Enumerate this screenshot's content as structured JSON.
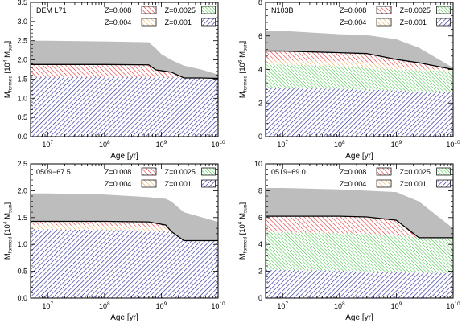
{
  "chart_data": [
    {
      "type": "area",
      "title": "DEM L71",
      "xlabel": "Age [yr]",
      "ylabel_main": "M",
      "ylabel_sub": "formed",
      "ylabel_bracket": "[10",
      "ylabel_exp": "4",
      "ylabel_unit": "M",
      "ylabel_unit_sub": "sun",
      "ylabel_close": "]",
      "xscale": "log",
      "xlim": [
        5000000.0,
        10000000000.0
      ],
      "ylim": [
        0,
        3.5
      ],
      "xticks": [
        10000000.0,
        100000000.0,
        1000000000.0,
        10000000000.0
      ],
      "xtick_labels": [
        {
          "b": "10",
          "e": "7"
        },
        {
          "b": "10",
          "e": "8"
        },
        {
          "b": "10",
          "e": "9"
        },
        {
          "b": "10",
          "e": "10"
        }
      ],
      "yticks": [
        0,
        0.5,
        1.0,
        1.5,
        2.0,
        2.5,
        3.0,
        3.5
      ],
      "ytick_labels": [
        "0.0",
        "0.5",
        "1.0",
        "1.5",
        "2.0",
        "2.5",
        "3.0",
        "3.5"
      ],
      "legend": [
        {
          "label": "Z=0.008",
          "pattern": "red"
        },
        {
          "label": "Z=0.0025",
          "pattern": "green"
        },
        {
          "label": "Z=0.004",
          "pattern": "orange"
        },
        {
          "label": "Z=0.001",
          "pattern": "blue"
        }
      ],
      "x": [
        5000000.0,
        10000000.0,
        100000000.0,
        600000000.0,
        800000000.0,
        1000000000.0,
        1500000000.0,
        2500000000.0,
        5000000000.0,
        10000000000.0
      ],
      "layers": [
        {
          "pattern": "blue",
          "y": [
            1.55,
            1.55,
            1.55,
            1.55,
            1.55,
            1.55,
            1.54,
            1.53,
            1.53,
            1.52
          ]
        },
        {
          "pattern": "green",
          "y": [
            1.55,
            1.55,
            1.55,
            1.55,
            1.55,
            1.55,
            1.54,
            1.53,
            1.53,
            1.52
          ]
        },
        {
          "pattern": "orange",
          "y": [
            1.55,
            1.55,
            1.55,
            1.55,
            1.55,
            1.55,
            1.54,
            1.53,
            1.53,
            1.52
          ]
        },
        {
          "pattern": "red",
          "y": [
            1.88,
            1.88,
            1.88,
            1.87,
            1.74,
            1.72,
            1.68,
            1.53,
            1.53,
            1.52
          ]
        }
      ],
      "upper": [
        2.5,
        2.5,
        2.48,
        2.46,
        2.3,
        2.15,
        2.0,
        1.85,
        1.75,
        1.62
      ]
    },
    {
      "type": "area",
      "title": "N103B",
      "xlabel": "Age [yr]",
      "ylabel_main": "M",
      "ylabel_sub": "formed",
      "ylabel_bracket": "[10",
      "ylabel_exp": "6",
      "ylabel_unit": "M",
      "ylabel_unit_sub": "sun",
      "ylabel_close": "]",
      "xscale": "log",
      "xlim": [
        5000000.0,
        10000000000.0
      ],
      "ylim": [
        0,
        8
      ],
      "xticks": [
        10000000.0,
        100000000.0,
        1000000000.0,
        10000000000.0
      ],
      "xtick_labels": [
        {
          "b": "10",
          "e": "7"
        },
        {
          "b": "10",
          "e": "8"
        },
        {
          "b": "10",
          "e": "9"
        },
        {
          "b": "10",
          "e": "10"
        }
      ],
      "yticks": [
        0,
        2,
        4,
        6,
        8
      ],
      "ytick_labels": [
        "0",
        "2",
        "4",
        "6",
        "8"
      ],
      "legend": [
        {
          "label": "Z=0.008",
          "pattern": "red"
        },
        {
          "label": "Z=0.0025",
          "pattern": "green"
        },
        {
          "label": "Z=0.004",
          "pattern": "orange"
        },
        {
          "label": "Z=0.001",
          "pattern": "blue"
        }
      ],
      "x": [
        5000000.0,
        10000000.0,
        100000000.0,
        300000000.0,
        1000000000.0,
        2500000000.0,
        10000000000.0
      ],
      "layers": [
        {
          "pattern": "blue",
          "y": [
            2.9,
            2.9,
            2.85,
            2.8,
            2.75,
            2.7,
            2.65
          ]
        },
        {
          "pattern": "green",
          "y": [
            4.3,
            4.3,
            4.2,
            4.1,
            4.0,
            3.95,
            3.9
          ]
        },
        {
          "pattern": "orange",
          "y": [
            4.55,
            4.55,
            4.5,
            4.45,
            4.2,
            4.05,
            4.0
          ]
        },
        {
          "pattern": "red",
          "y": [
            5.1,
            5.1,
            5.0,
            4.95,
            4.6,
            4.4,
            4.0
          ]
        }
      ],
      "upper": [
        6.3,
        6.3,
        6.1,
        6.05,
        5.8,
        5.3,
        4.1
      ]
    },
    {
      "type": "area",
      "title": "0509−67.5",
      "xlabel": "Age [yr]",
      "ylabel_main": "M",
      "ylabel_sub": "formed",
      "ylabel_bracket": "[10",
      "ylabel_exp": "4",
      "ylabel_unit": "M",
      "ylabel_unit_sub": "sun",
      "ylabel_close": "]",
      "xscale": "log",
      "xlim": [
        5000000.0,
        10000000000.0
      ],
      "ylim": [
        0,
        2.5
      ],
      "xticks": [
        10000000.0,
        100000000.0,
        1000000000.0,
        10000000000.0
      ],
      "xtick_labels": [
        {
          "b": "10",
          "e": "7"
        },
        {
          "b": "10",
          "e": "8"
        },
        {
          "b": "10",
          "e": "9"
        },
        {
          "b": "10",
          "e": "10"
        }
      ],
      "yticks": [
        0,
        0.5,
        1.0,
        1.5,
        2.0,
        2.5
      ],
      "ytick_labels": [
        "0.0",
        "0.5",
        "1.0",
        "1.5",
        "2.0",
        "2.5"
      ],
      "legend": [
        {
          "label": "Z=0.008",
          "pattern": "red"
        },
        {
          "label": "Z=0.0025",
          "pattern": "green"
        },
        {
          "label": "Z=0.004",
          "pattern": "orange"
        },
        {
          "label": "Z=0.001",
          "pattern": "blue"
        }
      ],
      "x": [
        5000000.0,
        10000000.0,
        100000000.0,
        600000000.0,
        1200000000.0,
        1500000000.0,
        2500000000.0,
        10000000000.0
      ],
      "layers": [
        {
          "pattern": "blue",
          "y": [
            1.28,
            1.28,
            1.27,
            1.26,
            1.25,
            1.22,
            1.07,
            1.07
          ]
        },
        {
          "pattern": "green",
          "y": [
            1.28,
            1.28,
            1.27,
            1.26,
            1.25,
            1.22,
            1.07,
            1.07
          ]
        },
        {
          "pattern": "orange",
          "y": [
            1.36,
            1.36,
            1.35,
            1.33,
            1.31,
            1.23,
            1.07,
            1.07
          ]
        },
        {
          "pattern": "red",
          "y": [
            1.43,
            1.43,
            1.43,
            1.42,
            1.36,
            1.24,
            1.07,
            1.07
          ]
        }
      ],
      "upper": [
        1.95,
        1.95,
        1.93,
        1.88,
        1.85,
        1.8,
        1.6,
        1.42
      ]
    },
    {
      "type": "area",
      "title": "0519−69.0",
      "xlabel": "Age [yr]",
      "ylabel_main": "M",
      "ylabel_sub": "formed",
      "ylabel_bracket": "[10",
      "ylabel_exp": "6",
      "ylabel_unit": "M",
      "ylabel_unit_sub": "sun",
      "ylabel_close": "]",
      "xscale": "log",
      "xlim": [
        5000000.0,
        10000000000.0
      ],
      "ylim": [
        0,
        10
      ],
      "xticks": [
        10000000.0,
        100000000.0,
        1000000000.0,
        10000000000.0
      ],
      "xtick_labels": [
        {
          "b": "10",
          "e": "7"
        },
        {
          "b": "10",
          "e": "8"
        },
        {
          "b": "10",
          "e": "9"
        },
        {
          "b": "10",
          "e": "10"
        }
      ],
      "yticks": [
        0,
        2,
        4,
        6,
        8,
        10
      ],
      "ytick_labels": [
        "0",
        "2",
        "4",
        "6",
        "8",
        "10"
      ],
      "legend": [
        {
          "label": "Z=0.008",
          "pattern": "red"
        },
        {
          "label": "Z=0.0025",
          "pattern": "green"
        },
        {
          "label": "Z=0.004",
          "pattern": "orange"
        },
        {
          "label": "Z=0.001",
          "pattern": "blue"
        }
      ],
      "x": [
        5000000.0,
        10000000.0,
        100000000.0,
        300000000.0,
        1000000000.0,
        2500000000.0,
        10000000000.0
      ],
      "layers": [
        {
          "pattern": "blue",
          "y": [
            2.1,
            2.1,
            2.05,
            2.0,
            1.95,
            1.9,
            1.85
          ]
        },
        {
          "pattern": "green",
          "y": [
            4.9,
            4.9,
            4.85,
            4.8,
            4.7,
            4.5,
            4.5
          ]
        },
        {
          "pattern": "orange",
          "y": [
            4.9,
            4.9,
            4.85,
            4.8,
            4.7,
            4.5,
            4.5
          ]
        },
        {
          "pattern": "red",
          "y": [
            6.1,
            6.1,
            6.1,
            6.05,
            5.8,
            4.5,
            4.5
          ]
        }
      ],
      "upper": [
        8.2,
        8.2,
        8.1,
        8.0,
        7.9,
        7.2,
        5.2
      ]
    }
  ],
  "colors": {
    "red": "#e02020",
    "orange": "#e6a040",
    "green": "#30c030",
    "blue": "#20209a",
    "upper_fill": "#bdbdbd"
  }
}
